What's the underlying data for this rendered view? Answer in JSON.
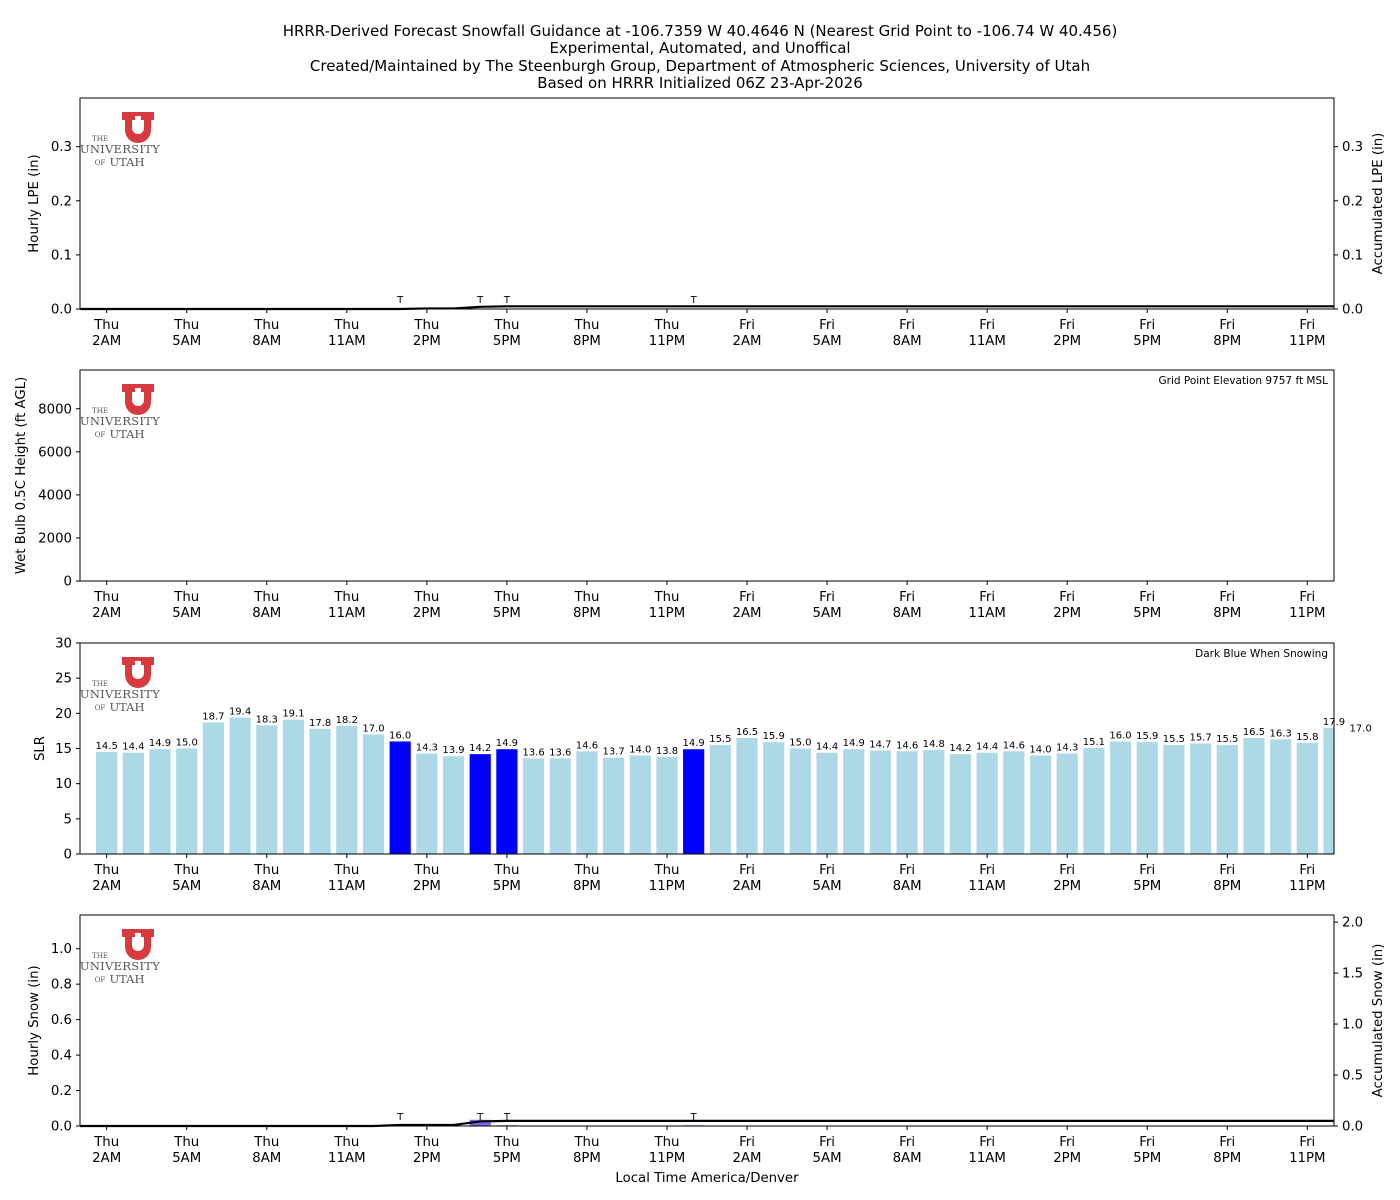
{
  "title_lines": [
    "HRRR-Derived Forecast Snowfall Guidance at -106.7359 W 40.4646 N (Nearest Grid Point to -106.74 W 40.456)",
    "Experimental, Automated, and Unoffical",
    "Created/Maintained by The Steenburgh Group, Department of Atmospheric Sciences, University of Utah",
    "Based on HRRR Initialized 06Z 23-Apr-2026"
  ],
  "logo": {
    "the": "THE",
    "university": "UNIVERSITY",
    "of": "OF",
    "utah": "UTAH",
    "color": "#d93a3f"
  },
  "x_axis": {
    "label": "Local Time America/Denver",
    "ticks": [
      {
        "hour": 0,
        "day": "Thu",
        "time": "2AM"
      },
      {
        "hour": 3,
        "day": "Thu",
        "time": "5AM"
      },
      {
        "hour": 6,
        "day": "Thu",
        "time": "8AM"
      },
      {
        "hour": 9,
        "day": "Thu",
        "time": "11AM"
      },
      {
        "hour": 12,
        "day": "Thu",
        "time": "2PM"
      },
      {
        "hour": 15,
        "day": "Thu",
        "time": "5PM"
      },
      {
        "hour": 18,
        "day": "Thu",
        "time": "8PM"
      },
      {
        "hour": 21,
        "day": "Thu",
        "time": "11PM"
      },
      {
        "hour": 24,
        "day": "Fri",
        "time": "2AM"
      },
      {
        "hour": 27,
        "day": "Fri",
        "time": "5AM"
      },
      {
        "hour": 30,
        "day": "Fri",
        "time": "8AM"
      },
      {
        "hour": 33,
        "day": "Fri",
        "time": "11AM"
      },
      {
        "hour": 36,
        "day": "Fri",
        "time": "2PM"
      },
      {
        "hour": 39,
        "day": "Fri",
        "time": "5PM"
      },
      {
        "hour": 42,
        "day": "Fri",
        "time": "8PM"
      },
      {
        "hour": 45,
        "day": "Fri",
        "time": "11PM"
      }
    ],
    "range": [
      -1,
      46
    ]
  },
  "chart_data": [
    {
      "type": "bar",
      "name": "lpe",
      "ylabel": "Hourly LPE (in)",
      "ylabel_right": "Accumulated LPE (in)",
      "ylim": [
        0,
        0.39
      ],
      "yticks": [
        0.0,
        0.1,
        0.2,
        0.3
      ],
      "yticks_labels": [
        "0.0",
        "0.1",
        "0.2",
        "0.3"
      ],
      "ylim_right": [
        0,
        0.39
      ],
      "yticks_right": [
        0.0,
        0.1,
        0.2,
        0.3
      ],
      "yticks_right_labels": [
        "0.0",
        "0.1",
        "0.2",
        "0.3"
      ],
      "trace_label": "T",
      "trace_hours": [
        11,
        14,
        15,
        22
      ],
      "hourly_values": [],
      "accumulated": {
        "hours": [
          -1,
          11,
          12,
          13,
          14,
          15,
          22,
          46
        ],
        "values": [
          0,
          0,
          0.001,
          0.001,
          0.004,
          0.005,
          0.005,
          0.005
        ]
      },
      "colors": {
        "line": "#000000"
      }
    },
    {
      "type": "bar",
      "name": "wetbulb",
      "ylabel": "Wet Bulb 0.5C Height (ft AGL)",
      "ylim": [
        0,
        9800
      ],
      "yticks": [
        0,
        2000,
        4000,
        6000,
        8000
      ],
      "yticks_labels": [
        "0",
        "2000",
        "4000",
        "6000",
        "8000"
      ],
      "note": "Grid Point Elevation 9757 ft MSL",
      "values": []
    },
    {
      "type": "bar",
      "name": "slr",
      "ylabel": "SLR",
      "ylim": [
        0,
        30
      ],
      "yticks": [
        0,
        5,
        10,
        15,
        20,
        25,
        30
      ],
      "yticks_labels": [
        "0",
        "5",
        "10",
        "15",
        "20",
        "25",
        "30"
      ],
      "note": "Dark Blue When Snowing",
      "values": [
        14.5,
        14.4,
        14.9,
        15.0,
        18.7,
        19.4,
        18.3,
        19.1,
        17.8,
        18.2,
        17.0,
        16.0,
        14.3,
        13.9,
        14.2,
        14.9,
        13.6,
        13.6,
        14.6,
        13.7,
        14.0,
        13.8,
        14.9,
        15.5,
        16.5,
        15.9,
        15.0,
        14.4,
        14.9,
        14.7,
        14.6,
        14.8,
        14.2,
        14.4,
        14.6,
        14.0,
        14.3,
        15.1,
        16.0,
        15.9,
        15.5,
        15.7,
        15.5,
        16.5,
        16.3,
        15.8,
        17.9,
        17.0
      ],
      "value_labels": [
        "14.5",
        "14.4",
        "14.9",
        "15.0",
        "18.7",
        "19.4",
        "18.3",
        "19.1",
        "17.8",
        "18.2",
        "17.0",
        "16.0",
        "14.3",
        "13.9",
        "14.2",
        "14.9",
        "13.6",
        "13.6",
        "14.6",
        "13.7",
        "14.0",
        "13.8",
        "14.9",
        "15.5",
        "16.5",
        "15.9",
        "15.0",
        "14.4",
        "14.9",
        "14.7",
        "14.6",
        "14.8",
        "14.2",
        "14.4",
        "14.6",
        "14.0",
        "14.3",
        "15.1",
        "16.0",
        "15.9",
        "15.5",
        "15.7",
        "15.5",
        "16.5",
        "16.3",
        "15.8",
        "17.9",
        "17.0"
      ],
      "snowing_hours": [
        11,
        14,
        15,
        22
      ],
      "colors": {
        "bar": "#add8e6",
        "snowing": "#0000ff"
      }
    },
    {
      "type": "bar",
      "name": "snow",
      "ylabel": "Hourly Snow (in)",
      "ylabel_right": "Accumulated Snow (in)",
      "ylim": [
        0,
        1.19
      ],
      "yticks": [
        0.0,
        0.2,
        0.4,
        0.6,
        0.8,
        1.0
      ],
      "yticks_labels": [
        "0.0",
        "0.2",
        "0.4",
        "0.6",
        "0.8",
        "1.0"
      ],
      "ylim_right": [
        0,
        2.07
      ],
      "yticks_right": [
        0.0,
        0.5,
        1.0,
        1.5,
        2.0
      ],
      "yticks_right_labels": [
        "0.0",
        "0.5",
        "1.0",
        "1.5",
        "2.0"
      ],
      "trace_label": "T",
      "trace_hours": [
        11,
        14,
        15,
        22
      ],
      "hourly_bars": [
        {
          "hour": 14,
          "value": 0.035
        },
        {
          "hour": 15,
          "value": 0.004
        },
        {
          "hour": 22,
          "value": 0.004
        }
      ],
      "accumulated": {
        "hours": [
          -1,
          10,
          11,
          13,
          14,
          15,
          22,
          46
        ],
        "values": [
          0,
          0,
          0.01,
          0.01,
          0.045,
          0.05,
          0.05,
          0.05
        ]
      },
      "colors": {
        "bar": "#7b68ee",
        "line": "#000000"
      }
    }
  ]
}
